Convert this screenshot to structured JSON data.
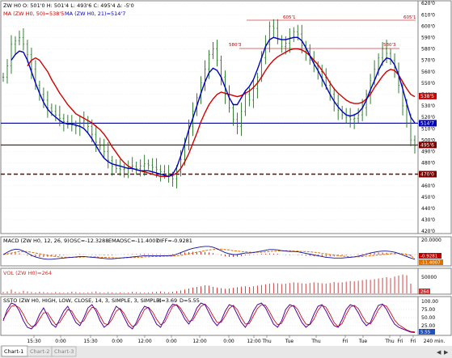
{
  "header": {
    "symbol_ohlc": "ZW H0  O: 501'0  H: 501'4  L: 493'6  C: 495'4  Δ: -5'0",
    "ma50_label": "MA (ZW H0, 50)=538'5",
    "ma21_label": "MA (ZW H0, 21)=514'7"
  },
  "colors": {
    "price": "#207020",
    "ma50": "#d00000",
    "ma21": "#0000c0",
    "hline_blue": "#00009a",
    "hline_darkred": "#7a0000",
    "macd": "#1010a0",
    "macd_signal": "#e07000",
    "macd_hist": "#c00000",
    "volume": "#d03030",
    "stoch_k": "#5a00a0",
    "stoch_d": "#c00000",
    "grid": "#dddddd"
  },
  "chart_data": [
    {
      "type": "line",
      "panel": "price",
      "y_ticks": [
        "620'0",
        "610'0",
        "600'0",
        "590'0",
        "580'0",
        "570'0",
        "560'0",
        "550'0",
        "540'0",
        "530'0",
        "520'0",
        "510'0",
        "500'0",
        "490'0",
        "480'0",
        "470'0",
        "460'0",
        "450'0",
        "440'0",
        "430'0",
        "420'0"
      ],
      "ylim": [
        420,
        620
      ],
      "series": [
        {
          "name": "ZW H0",
          "values": [
            555,
            565,
            584,
            587,
            590,
            584,
            575,
            562,
            548,
            540,
            535,
            528,
            525,
            522,
            519,
            516,
            514,
            513,
            512,
            515,
            517,
            512,
            505,
            498,
            495,
            490,
            482,
            477,
            475,
            474,
            475,
            476,
            477,
            475,
            477,
            479,
            478,
            476,
            474,
            472,
            470,
            468,
            466,
            472,
            483,
            498,
            512,
            525,
            537,
            550,
            562,
            575,
            580,
            570,
            555,
            540,
            528,
            518,
            512,
            525,
            540,
            535,
            545,
            555,
            572,
            584,
            600,
            598,
            588,
            582,
            585,
            590,
            595,
            593,
            583,
            578,
            570,
            565,
            560,
            555,
            548,
            540,
            532,
            526,
            522,
            520,
            518,
            519,
            522,
            528,
            540,
            552,
            562,
            572,
            580,
            576,
            570,
            560,
            548,
            530,
            515,
            500,
            495
          ]
        },
        {
          "name": "MA (ZW H0, 50)",
          "values": [
            null,
            null,
            null,
            null,
            null,
            null,
            565,
            570,
            572,
            570,
            565,
            560,
            553,
            547,
            541,
            536,
            531,
            527,
            523,
            521,
            519,
            517,
            515,
            512,
            509,
            505,
            500,
            494,
            489,
            484,
            480,
            477,
            475,
            474,
            473,
            472,
            471,
            470,
            469,
            468,
            468,
            468,
            469,
            471,
            475,
            481,
            488,
            497,
            506,
            516,
            524,
            531,
            536,
            540,
            542,
            541,
            540,
            539,
            538,
            539,
            541,
            543,
            546,
            550,
            555,
            561,
            566,
            570,
            573,
            575,
            577,
            579,
            580,
            580,
            579,
            577,
            574,
            570,
            566,
            561,
            556,
            550,
            545,
            541,
            538,
            535,
            533,
            532,
            532,
            533,
            536,
            540,
            546,
            551,
            556,
            560,
            562,
            561,
            557,
            551,
            545,
            540,
            538
          ]
        },
        {
          "name": "MA (ZW H0, 21)",
          "values": [
            null,
            null,
            570,
            575,
            578,
            577,
            570,
            560,
            550,
            541,
            533,
            527,
            523,
            520,
            517,
            515,
            514,
            514,
            513,
            512,
            510,
            506,
            501,
            495,
            489,
            484,
            481,
            479,
            478,
            477,
            476,
            475,
            475,
            474,
            473,
            473,
            473,
            472,
            471,
            470,
            469,
            468,
            470,
            476,
            486,
            497,
            509,
            519,
            530,
            541,
            551,
            559,
            563,
            561,
            555,
            546,
            537,
            531,
            531,
            537,
            543,
            547,
            553,
            562,
            572,
            582,
            588,
            590,
            589,
            588,
            588,
            589,
            590,
            590,
            587,
            581,
            574,
            567,
            561,
            554,
            547,
            540,
            534,
            529,
            525,
            522,
            521,
            522,
            524,
            528,
            535,
            544,
            552,
            561,
            568,
            572,
            571,
            566,
            557,
            545,
            532,
            520,
            515
          ]
        }
      ],
      "horizontal_lines": [
        {
          "value": 605.1,
          "label": "605'1",
          "label_right": "605'1"
        },
        {
          "value": 580.3,
          "label": "580'3",
          "label_right": "580'3"
        },
        {
          "value": 514.7,
          "label": "514'7"
        },
        {
          "value": 495.6,
          "label": "495'6"
        },
        {
          "value": 470.0,
          "label": "470'0"
        }
      ],
      "markers": [
        {
          "label": "538'5",
          "color": "ma50"
        },
        {
          "label": "514'7",
          "color": "ma21"
        },
        {
          "label": "495'6",
          "color": "hline_darkred"
        },
        {
          "label": "470'0",
          "color": "hline_darkred"
        }
      ]
    },
    {
      "type": "line",
      "panel": "macd",
      "title": "MACD (ZW H0, 12, 26, 9)",
      "legend": [
        "OSC=-12.3288",
        "EMAOSC=-11.4007",
        "DIFF=-0.9281"
      ],
      "y_ticks": [
        "20.0000",
        "-20.0000"
      ],
      "markers": [
        "-0.9281",
        "-11.4007"
      ],
      "ylim": [
        -25,
        25
      ],
      "series": [
        {
          "name": "OSC",
          "values": [
            0,
            6,
            11,
            14,
            13,
            9,
            4,
            -2,
            -6,
            -9,
            -11,
            -12,
            -12,
            -11,
            -10,
            -9,
            -8,
            -7,
            -6,
            -5,
            -5,
            -6,
            -7,
            -8,
            -9,
            -10,
            -11,
            -11,
            -10,
            -9,
            -8,
            -7,
            -6,
            -5,
            -4,
            -3,
            -3,
            -3,
            -3,
            -3,
            -3,
            -3,
            -2,
            1,
            5,
            9,
            13,
            16,
            18,
            20,
            21,
            21,
            19,
            15,
            10,
            5,
            2,
            0,
            0,
            2,
            4,
            4,
            5,
            7,
            9,
            11,
            13,
            13,
            12,
            10,
            9,
            8,
            8,
            7,
            5,
            3,
            1,
            -1,
            -3,
            -5,
            -7,
            -8,
            -9,
            -9,
            -9,
            -8,
            -7,
            -6,
            -4,
            -2,
            1,
            4,
            6,
            8,
            9,
            9,
            8,
            6,
            3,
            -1,
            -5,
            -9,
            -12
          ]
        },
        {
          "name": "EMAOSC",
          "values": [
            0,
            2,
            4,
            6,
            8,
            8,
            8,
            6,
            4,
            2,
            0,
            -2,
            -4,
            -5,
            -6,
            -7,
            -7,
            -7,
            -7,
            -7,
            -6,
            -6,
            -6,
            -6,
            -7,
            -7,
            -8,
            -8,
            -9,
            -9,
            -9,
            -8,
            -8,
            -7,
            -7,
            -6,
            -6,
            -5,
            -5,
            -5,
            -4,
            -4,
            -4,
            -3,
            -2,
            0,
            2,
            4,
            6,
            8,
            10,
            12,
            13,
            14,
            14,
            13,
            12,
            10,
            9,
            8,
            7,
            6,
            6,
            6,
            6,
            7,
            8,
            9,
            9,
            10,
            10,
            10,
            9,
            9,
            8,
            8,
            7,
            6,
            5,
            3,
            2,
            0,
            -1,
            -3,
            -4,
            -5,
            -6,
            -6,
            -6,
            -5,
            -4,
            -3,
            -2,
            -1,
            0,
            1,
            2,
            3,
            3,
            2,
            1,
            -2,
            -11
          ]
        }
      ]
    },
    {
      "type": "bar",
      "panel": "volume",
      "title": "VOL (ZW H0)=264",
      "y_ticks": [
        "50000"
      ],
      "markers": [
        "264"
      ],
      "ylim": [
        0,
        70000
      ],
      "series": [
        {
          "name": "VOL",
          "values": [
            4000,
            6000,
            12000,
            5000,
            3000,
            8000,
            6000,
            4000,
            3000,
            5000,
            4000,
            3000,
            2000,
            4000,
            3000,
            2000,
            3000,
            5000,
            4000,
            3000,
            2000,
            3000,
            4000,
            6000,
            3000,
            2000,
            4000,
            3000,
            2000,
            3000,
            2000,
            3000,
            5000,
            4000,
            3000,
            2000,
            3000,
            4000,
            5000,
            6000,
            4000,
            3000,
            5000,
            7000,
            9000,
            12000,
            15000,
            18000,
            20000,
            22000,
            25000,
            24000,
            20000,
            18000,
            16000,
            14000,
            15000,
            17000,
            19000,
            21000,
            22000,
            20000,
            22000,
            24000,
            26000,
            28000,
            30000,
            32000,
            31000,
            29000,
            30000,
            32000,
            34000,
            33000,
            31000,
            30000,
            32000,
            34000,
            33000,
            31000,
            30000,
            32000,
            35000,
            33000,
            34000,
            36000,
            38000,
            37000,
            39000,
            41000,
            43000,
            42000,
            44000,
            46000,
            48000,
            50000,
            47000,
            52000,
            55000,
            58000,
            56000,
            30000,
            264
          ]
        }
      ]
    },
    {
      "type": "line",
      "panel": "stochastics",
      "title": "SSTO (ZW H0, HIGH, LOW, CLOSE, 14, 3, SIMPLE, 3, SIMPLE)",
      "legend": [
        "K=3.69",
        "D=5.55"
      ],
      "y_ticks": [
        "100.00",
        "75.00",
        "50.00",
        "25.00"
      ],
      "markers": [
        "5.55"
      ],
      "ylim": [
        0,
        110
      ],
      "series": [
        {
          "name": "K",
          "values": [
            40,
            75,
            95,
            90,
            70,
            40,
            20,
            15,
            30,
            60,
            80,
            55,
            30,
            20,
            45,
            70,
            85,
            60,
            35,
            25,
            50,
            80,
            90,
            70,
            40,
            20,
            30,
            60,
            85,
            75,
            50,
            25,
            15,
            35,
            65,
            85,
            80,
            55,
            30,
            20,
            45,
            75,
            92,
            88,
            70,
            45,
            30,
            50,
            80,
            95,
            90,
            65,
            40,
            25,
            40,
            70,
            90,
            85,
            60,
            35,
            20,
            40,
            70,
            90,
            95,
            80,
            55,
            30,
            20,
            40,
            75,
            90,
            85,
            60,
            35,
            20,
            30,
            60,
            85,
            90,
            70,
            45,
            25,
            20,
            45,
            75,
            90,
            85,
            65,
            40,
            25,
            35,
            65,
            88,
            92,
            75,
            50,
            30,
            20,
            15,
            10,
            5,
            3.69
          ]
        },
        {
          "name": "D",
          "values": [
            45,
            65,
            85,
            88,
            80,
            60,
            35,
            22,
            25,
            45,
            65,
            65,
            45,
            28,
            35,
            55,
            75,
            70,
            48,
            33,
            40,
            65,
            82,
            78,
            55,
            32,
            28,
            45,
            70,
            78,
            62,
            38,
            22,
            28,
            50,
            75,
            82,
            68,
            45,
            28,
            35,
            60,
            85,
            90,
            78,
            58,
            38,
            42,
            65,
            85,
            92,
            78,
            55,
            35,
            35,
            55,
            78,
            88,
            75,
            50,
            30,
            32,
            55,
            78,
            90,
            88,
            68,
            45,
            28,
            32,
            58,
            82,
            88,
            75,
            50,
            30,
            28,
            45,
            72,
            88,
            82,
            60,
            35,
            22,
            32,
            60,
            82,
            88,
            78,
            55,
            35,
            30,
            50,
            75,
            90,
            85,
            65,
            42,
            28,
            20,
            12,
            7,
            5.55
          ]
        }
      ]
    }
  ],
  "time_axis": {
    "labels": [
      "15:30",
      "0:00",
      "15:30",
      "0:00",
      "12:00",
      "0:00",
      "12:00",
      "0:00",
      "12:00",
      "Thu",
      "Tue",
      "Thu",
      "Fri",
      "Tue",
      "Thu",
      "Fri",
      "Fri"
    ],
    "unit_label": "240 min."
  },
  "tabs": [
    {
      "label": "Chart-1"
    },
    {
      "label": "Chart-2"
    },
    {
      "label": "Chart-3"
    }
  ],
  "scroll_arrows": [
    "◀",
    "▶"
  ]
}
